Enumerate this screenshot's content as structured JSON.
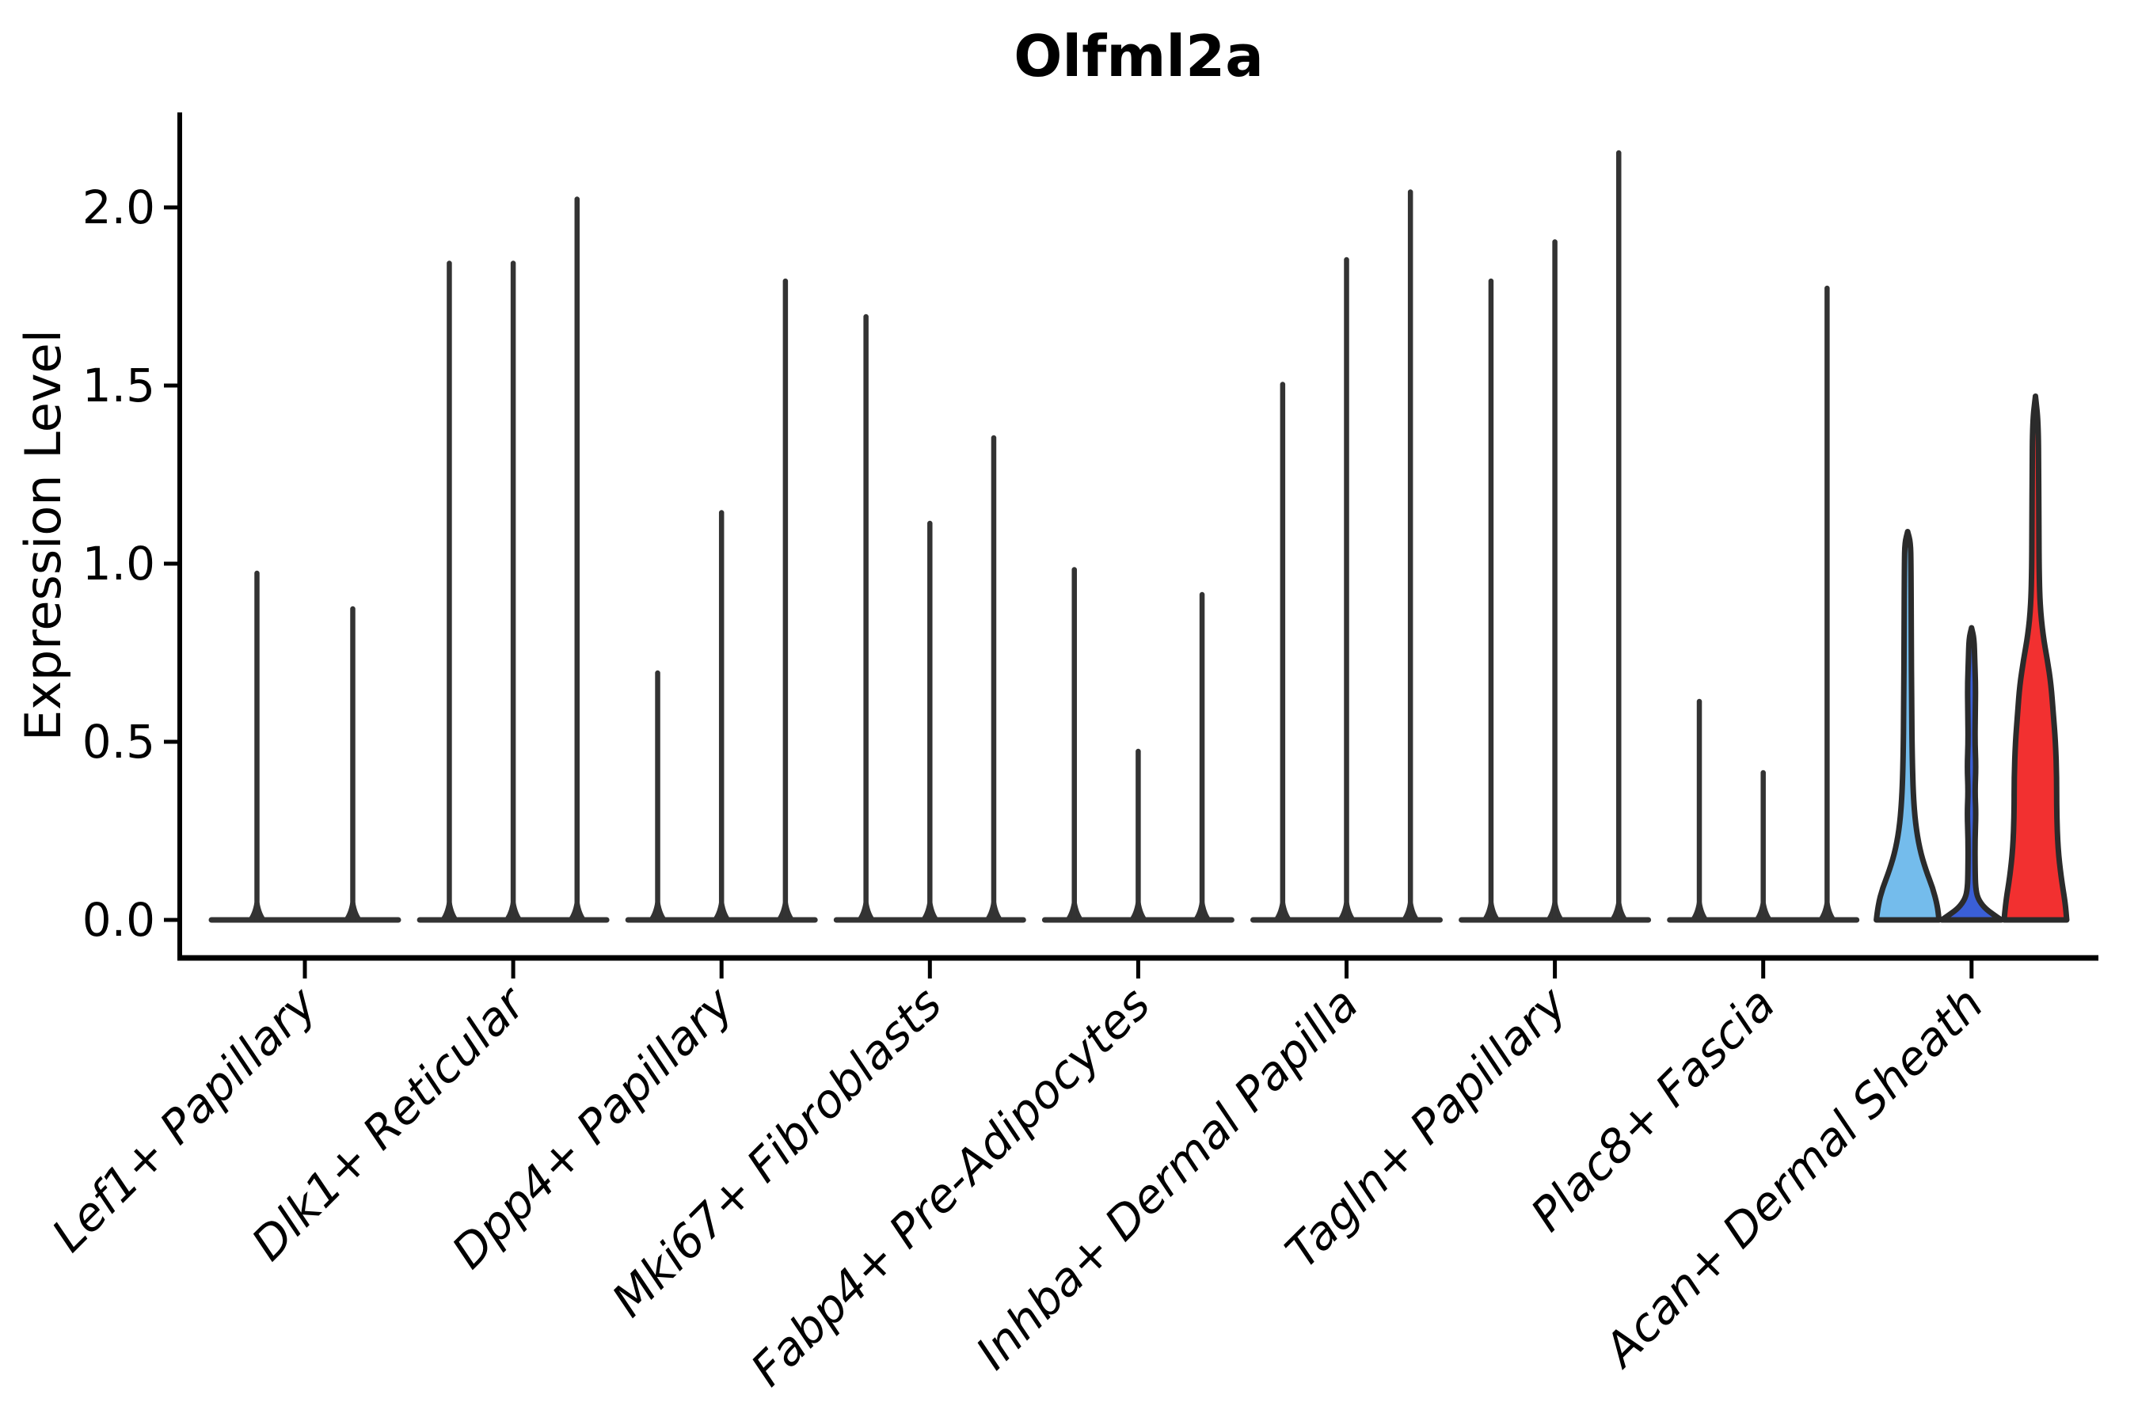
{
  "chart_data": {
    "type": "violin",
    "title": "Olfml2a",
    "ylabel": "Expression Level",
    "xlabel": "",
    "ylim": [
      0,
      2.27
    ],
    "yticks": [
      0.0,
      0.5,
      1.0,
      1.5,
      2.0
    ],
    "ytick_labels": [
      "0.0",
      "0.5",
      "1.0",
      "1.5",
      "2.0"
    ],
    "grid": false,
    "legend": "none",
    "colors": {
      "spike": "#333333",
      "outline": "#2b2b2b",
      "axis": "#000000",
      "acan_violin_1": "#74BCEC",
      "acan_violin_2": "#3A5FD7",
      "acan_violin_3": "#F23030"
    },
    "categories": [
      "Lef1+ Papillary",
      "Dlk1+ Reticular",
      "Dpp4+ Papillary",
      "Mki67+ Fibroblasts",
      "Fabp4+ Pre-Adipocytes",
      "Inhba+ Dermal Papilla",
      "Tagln+ Papillary",
      "Plac8+ Fascia",
      "Acan+ Dermal Sheath"
    ],
    "groups": [
      {
        "label": "Lef1+ Papillary",
        "violins": [
          {
            "peak": 0.98
          },
          {
            "peak": 0.88
          }
        ]
      },
      {
        "label": "Dlk1+ Reticular",
        "violins": [
          {
            "peak": 1.85
          },
          {
            "peak": 1.85
          },
          {
            "peak": 2.03
          }
        ]
      },
      {
        "label": "Dpp4+ Papillary",
        "violins": [
          {
            "peak": 0.7
          },
          {
            "peak": 1.15
          },
          {
            "peak": 1.8
          }
        ]
      },
      {
        "label": "Mki67+ Fibroblasts",
        "violins": [
          {
            "peak": 1.7
          },
          {
            "peak": 1.12
          },
          {
            "peak": 1.36
          }
        ]
      },
      {
        "label": "Fabp4+ Pre-Adipocytes",
        "violins": [
          {
            "peak": 0.99
          },
          {
            "peak": 0.48
          },
          {
            "peak": 0.92
          }
        ]
      },
      {
        "label": "Inhba+ Dermal Papilla",
        "violins": [
          {
            "peak": 1.51
          },
          {
            "peak": 1.86
          },
          {
            "peak": 2.05
          }
        ]
      },
      {
        "label": "Tagln+ Papillary",
        "violins": [
          {
            "peak": 1.8
          },
          {
            "peak": 1.91
          },
          {
            "peak": 2.16
          }
        ]
      },
      {
        "label": "Plac8+ Fascia",
        "violins": [
          {
            "peak": 0.62
          },
          {
            "peak": 0.42
          },
          {
            "peak": 1.78
          }
        ]
      },
      {
        "label": "Acan+ Dermal Sheath",
        "violins": [
          {
            "peak": 1.09,
            "color": "#74BCEC",
            "profile": [
              [
                0,
                1.0
              ],
              [
                0.04,
                0.95
              ],
              [
                0.09,
                0.8
              ],
              [
                0.14,
                0.58
              ],
              [
                0.2,
                0.38
              ],
              [
                0.27,
                0.25
              ],
              [
                0.35,
                0.18
              ],
              [
                0.45,
                0.145
              ],
              [
                0.6,
                0.125
              ],
              [
                0.8,
                0.115
              ],
              [
                1.0,
                0.105
              ],
              [
                1.06,
                0.09
              ],
              [
                1.09,
                0
              ]
            ]
          },
          {
            "peak": 0.82,
            "color": "#3A5FD7",
            "profile": [
              [
                0,
                0.95
              ],
              [
                0.015,
                0.7
              ],
              [
                0.035,
                0.4
              ],
              [
                0.06,
                0.2
              ],
              [
                0.09,
                0.13
              ],
              [
                0.14,
                0.115
              ],
              [
                0.22,
                0.11
              ],
              [
                0.3,
                0.14
              ],
              [
                0.36,
                0.11
              ],
              [
                0.43,
                0.14
              ],
              [
                0.5,
                0.11
              ],
              [
                0.58,
                0.12
              ],
              [
                0.66,
                0.13
              ],
              [
                0.73,
                0.1
              ],
              [
                0.79,
                0.08
              ],
              [
                0.82,
                0
              ]
            ]
          },
          {
            "peak": 1.47,
            "color": "#F23030",
            "profile": [
              [
                0,
                1.0
              ],
              [
                0.05,
                0.95
              ],
              [
                0.12,
                0.82
              ],
              [
                0.2,
                0.72
              ],
              [
                0.3,
                0.68
              ],
              [
                0.4,
                0.68
              ],
              [
                0.5,
                0.64
              ],
              [
                0.58,
                0.57
              ],
              [
                0.66,
                0.5
              ],
              [
                0.73,
                0.38
              ],
              [
                0.8,
                0.24
              ],
              [
                0.88,
                0.15
              ],
              [
                0.97,
                0.12
              ],
              [
                1.1,
                0.11
              ],
              [
                1.25,
                0.105
              ],
              [
                1.4,
                0.09
              ],
              [
                1.47,
                0
              ]
            ]
          }
        ]
      }
    ]
  }
}
